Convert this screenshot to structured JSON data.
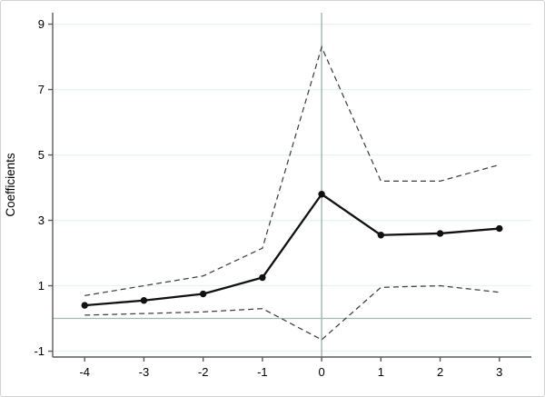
{
  "figure": {
    "ylabel": "Coefficients",
    "xlabel": ""
  },
  "chart_data": {
    "type": "line",
    "title": "",
    "xlabel": "",
    "ylabel": "Coefficients",
    "x": [
      -4,
      -3,
      -2,
      -1,
      0,
      1,
      2,
      3
    ],
    "series": [
      {
        "name": "coefficient",
        "style": "solid-marker",
        "values": [
          0.4,
          0.55,
          0.75,
          1.25,
          3.8,
          2.55,
          2.6,
          2.75
        ]
      },
      {
        "name": "ci-upper",
        "style": "dashed",
        "values": [
          0.7,
          1.0,
          1.3,
          2.15,
          8.3,
          4.2,
          4.2,
          4.7
        ]
      },
      {
        "name": "ci-lower",
        "style": "dashed",
        "values": [
          0.1,
          0.15,
          0.2,
          0.3,
          -0.65,
          0.95,
          1.0,
          0.8
        ]
      }
    ],
    "x_ticks": [
      "-4",
      "-3",
      "-2",
      "-1",
      "0",
      "1",
      "2",
      "3"
    ],
    "y_ticks": [
      "-1",
      "1",
      "3",
      "5",
      "7",
      "9"
    ],
    "xlim": [
      -4.54,
      3.54
    ],
    "ylim": [
      -1.18,
      9.35
    ],
    "reference_lines": {
      "horizontal_at": 0,
      "vertical_at": 0
    },
    "grid": "horizontal",
    "legend": "none",
    "colors": {
      "line": "#111111",
      "ci": "#3f3f3f",
      "grid": "#e9f1f3",
      "refline": "#a4bab2",
      "axis": "#5a5a5a",
      "text": "#000000",
      "border": "#d2d2d2",
      "background": "#ffffff"
    }
  }
}
